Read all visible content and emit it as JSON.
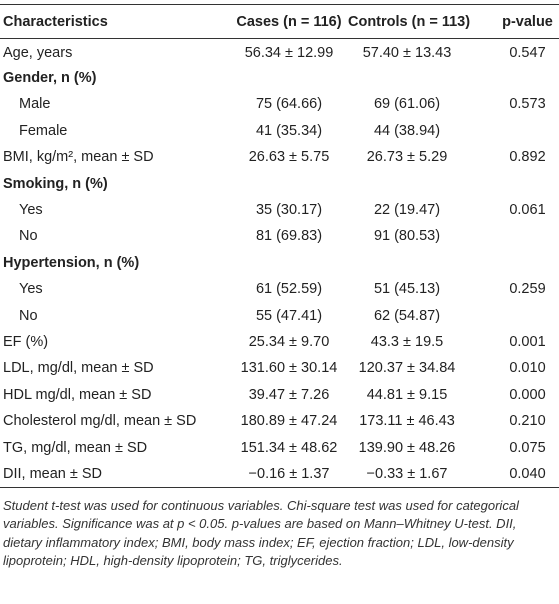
{
  "table": {
    "header": [
      "Characteristics",
      "Cases (n = 116)",
      "Controls (n = 113)",
      "p-value"
    ],
    "rows": [
      {
        "cells": [
          "Age, years",
          "56.34 ± 12.99",
          "57.40 ± 13.43",
          "0.547"
        ]
      },
      {
        "cells": [
          "Gender, n (%)"
        ],
        "bold": true
      },
      {
        "cells": [
          "Male",
          "75 (64.66)",
          "69 (61.06)",
          "0.573"
        ],
        "indent": true
      },
      {
        "cells": [
          "Female",
          "41 (35.34)",
          "44 (38.94)"
        ],
        "indent": true
      },
      {
        "cells": [
          "BMI, kg/m², mean ± SD",
          "26.63 ± 5.75",
          "26.73 ± 5.29",
          "0.892"
        ]
      },
      {
        "cells": [
          "Smoking, n (%)"
        ],
        "bold": true
      },
      {
        "cells": [
          "Yes",
          "35 (30.17)",
          "22 (19.47)",
          "0.061"
        ],
        "indent": true
      },
      {
        "cells": [
          "No",
          "81 (69.83)",
          "91 (80.53)"
        ],
        "indent": true
      },
      {
        "cells": [
          "Hypertension, n (%)"
        ],
        "bold": true
      },
      {
        "cells": [
          "Yes",
          "61 (52.59)",
          "51 (45.13)",
          "0.259"
        ],
        "indent": true
      },
      {
        "cells": [
          "No",
          "55 (47.41)",
          "62 (54.87)"
        ],
        "indent": true
      },
      {
        "cells": [
          "EF (%)",
          "25.34 ± 9.70",
          "43.3 ± 19.5",
          "0.001"
        ]
      },
      {
        "cells": [
          "LDL, mg/dl, mean ± SD",
          "131.60 ± 30.14",
          "120.37 ± 34.84",
          "0.010"
        ]
      },
      {
        "cells": [
          "HDL mg/dl, mean ± SD",
          "39.47 ± 7.26",
          "44.81 ± 9.15",
          "0.000"
        ]
      },
      {
        "cells": [
          "Cholesterol mg/dl, mean ± SD",
          "180.89 ± 47.24",
          "173.11 ± 46.43",
          "0.210"
        ]
      },
      {
        "cells": [
          "TG, mg/dl, mean ± SD",
          "151.34 ± 48.62",
          "139.90 ± 48.26",
          "0.075"
        ]
      },
      {
        "cells": [
          "DII, mean ± SD",
          "−0.16 ± 1.37",
          "−0.33 ± 1.67",
          "0.040"
        ]
      }
    ],
    "footnote": "Student t-test was used for continuous variables. Chi-square test was used for categorical variables. Significance was at p < 0.05. p-values are based on Mann–Whitney U-test. DII, dietary inflammatory index; BMI, body mass index; EF, ejection fraction; LDL, low-density lipoprotein; HDL, high-density lipoprotein; TG, triglycerides."
  }
}
